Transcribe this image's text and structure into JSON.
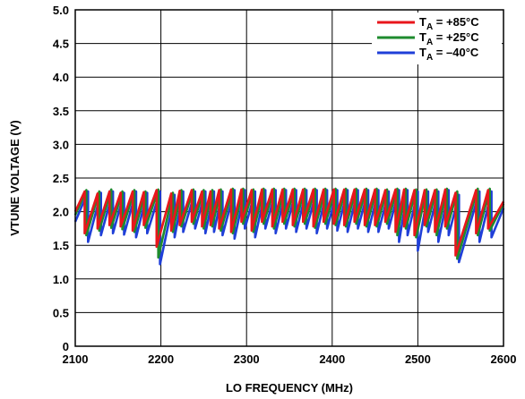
{
  "chart_data": {
    "type": "line",
    "title": "",
    "xlabel": "LO FREQUENCY (MHz)",
    "ylabel": "VTUNE VOLTAGE (V)",
    "xlim": [
      2100,
      2600
    ],
    "ylim": [
      0,
      5.0
    ],
    "x_ticks": [
      2100,
      2200,
      2300,
      2400,
      2500,
      2600
    ],
    "y_ticks": [
      0,
      0.5,
      1.0,
      1.5,
      2.0,
      2.5,
      3.0,
      3.5,
      4.0,
      4.5,
      5.0
    ],
    "x_tick_labels": [
      "2100",
      "2200",
      "2300",
      "2400",
      "2500",
      "2600"
    ],
    "y_tick_labels": [
      "0",
      "0.5",
      "1.0",
      "1.5",
      "2.0",
      "2.5",
      "3.0",
      "3.5",
      "4.0",
      "4.5",
      "5.0"
    ],
    "grid": true,
    "legend_position": "top-right",
    "series": [
      {
        "name_prefix": "T",
        "name_sub": "A",
        "name_suffix": " = +85°C",
        "color": "#e8161b",
        "x": [
          2100,
          2111,
          2111,
          2126,
          2126,
          2140,
          2140,
          2153,
          2153,
          2167,
          2167,
          2180,
          2180,
          2195,
          2195,
          2212,
          2212,
          2222,
          2222,
          2236,
          2236,
          2248,
          2248,
          2258,
          2258,
          2268,
          2268,
          2282,
          2282,
          2294,
          2294,
          2306,
          2306,
          2318,
          2318,
          2330,
          2330,
          2342,
          2342,
          2354,
          2354,
          2366,
          2366,
          2378,
          2378,
          2390,
          2390,
          2402,
          2402,
          2414,
          2414,
          2426,
          2426,
          2438,
          2438,
          2450,
          2450,
          2462,
          2462,
          2474,
          2474,
          2484,
          2484,
          2496,
          2496,
          2508,
          2508,
          2520,
          2520,
          2532,
          2532,
          2544,
          2544,
          2568,
          2568,
          2582,
          2582,
          2600
        ],
        "y": [
          2.0,
          2.3,
          1.68,
          2.27,
          1.75,
          2.3,
          1.8,
          2.28,
          1.78,
          2.3,
          1.72,
          2.29,
          1.8,
          2.32,
          1.48,
          2.27,
          1.72,
          2.31,
          1.8,
          2.32,
          1.85,
          2.3,
          1.78,
          2.3,
          1.8,
          2.32,
          1.75,
          2.33,
          1.7,
          2.33,
          1.85,
          2.32,
          1.72,
          2.33,
          1.85,
          2.33,
          1.78,
          2.33,
          1.85,
          2.33,
          1.8,
          2.33,
          1.85,
          2.33,
          1.78,
          2.33,
          1.85,
          2.33,
          1.82,
          2.33,
          1.8,
          2.33,
          1.85,
          2.33,
          1.8,
          2.33,
          1.8,
          2.32,
          1.85,
          2.33,
          1.7,
          2.33,
          1.78,
          2.32,
          1.65,
          2.32,
          1.8,
          2.32,
          1.7,
          2.33,
          1.78,
          2.28,
          1.35,
          2.32,
          1.68,
          2.32,
          1.75,
          2.15
        ]
      },
      {
        "name_prefix": "T",
        "name_sub": "A",
        "name_suffix": " = +25°C",
        "color": "#1e8b2e",
        "x": [
          2100,
          2113,
          2113,
          2128,
          2128,
          2142,
          2142,
          2155,
          2155,
          2169,
          2169,
          2182,
          2182,
          2197,
          2197,
          2214,
          2214,
          2224,
          2224,
          2238,
          2238,
          2250,
          2250,
          2260,
          2260,
          2270,
          2270,
          2284,
          2284,
          2296,
          2296,
          2308,
          2308,
          2320,
          2320,
          2332,
          2332,
          2344,
          2344,
          2356,
          2356,
          2368,
          2368,
          2380,
          2380,
          2392,
          2392,
          2404,
          2404,
          2416,
          2416,
          2428,
          2428,
          2440,
          2440,
          2452,
          2452,
          2464,
          2464,
          2476,
          2476,
          2486,
          2486,
          2498,
          2498,
          2510,
          2510,
          2522,
          2522,
          2534,
          2534,
          2546,
          2546,
          2570,
          2570,
          2584,
          2584,
          2600
        ],
        "y": [
          1.95,
          2.32,
          1.65,
          2.3,
          1.72,
          2.33,
          1.76,
          2.3,
          1.74,
          2.32,
          1.7,
          2.3,
          1.76,
          2.33,
          1.32,
          2.28,
          1.7,
          2.32,
          1.78,
          2.33,
          1.82,
          2.32,
          1.75,
          2.32,
          1.78,
          2.33,
          1.72,
          2.34,
          1.68,
          2.34,
          1.82,
          2.33,
          1.7,
          2.34,
          1.82,
          2.34,
          1.75,
          2.34,
          1.82,
          2.34,
          1.78,
          2.34,
          1.82,
          2.34,
          1.76,
          2.34,
          1.82,
          2.34,
          1.8,
          2.34,
          1.78,
          2.34,
          1.82,
          2.34,
          1.78,
          2.34,
          1.78,
          2.33,
          1.82,
          2.34,
          1.65,
          2.34,
          1.75,
          2.33,
          1.62,
          2.33,
          1.78,
          2.33,
          1.65,
          2.34,
          1.75,
          2.3,
          1.3,
          2.34,
          1.65,
          2.34,
          1.72,
          2.12
        ]
      },
      {
        "name_prefix": "T",
        "name_sub": "A",
        "name_suffix": " = –40°C",
        "color": "#1f3fd8",
        "x": [
          2100,
          2115,
          2115,
          2130,
          2130,
          2144,
          2144,
          2157,
          2157,
          2171,
          2171,
          2184,
          2184,
          2199,
          2199,
          2216,
          2216,
          2226,
          2226,
          2240,
          2240,
          2252,
          2252,
          2262,
          2262,
          2272,
          2272,
          2286,
          2286,
          2298,
          2298,
          2310,
          2310,
          2322,
          2322,
          2334,
          2334,
          2346,
          2346,
          2358,
          2358,
          2370,
          2370,
          2382,
          2382,
          2394,
          2394,
          2406,
          2406,
          2418,
          2418,
          2430,
          2430,
          2442,
          2442,
          2454,
          2454,
          2466,
          2466,
          2478,
          2478,
          2488,
          2488,
          2500,
          2500,
          2512,
          2512,
          2524,
          2524,
          2536,
          2536,
          2548,
          2548,
          2572,
          2572,
          2586,
          2586,
          2600
        ],
        "y": [
          1.85,
          2.3,
          1.55,
          2.28,
          1.65,
          2.3,
          1.68,
          2.28,
          1.66,
          2.3,
          1.62,
          2.28,
          1.68,
          2.3,
          1.22,
          2.25,
          1.62,
          2.3,
          1.7,
          2.3,
          1.75,
          2.3,
          1.68,
          2.3,
          1.7,
          2.3,
          1.65,
          2.32,
          1.6,
          2.32,
          1.75,
          2.3,
          1.62,
          2.32,
          1.75,
          2.32,
          1.68,
          2.32,
          1.75,
          2.32,
          1.7,
          2.32,
          1.75,
          2.32,
          1.68,
          2.32,
          1.75,
          2.32,
          1.72,
          2.32,
          1.7,
          2.32,
          1.75,
          2.32,
          1.7,
          2.32,
          1.7,
          2.3,
          1.75,
          2.32,
          1.55,
          2.32,
          1.65,
          2.3,
          1.42,
          2.3,
          1.7,
          2.3,
          1.55,
          2.32,
          1.65,
          2.25,
          1.25,
          2.3,
          1.55,
          2.3,
          1.62,
          2.05
        ]
      }
    ]
  }
}
